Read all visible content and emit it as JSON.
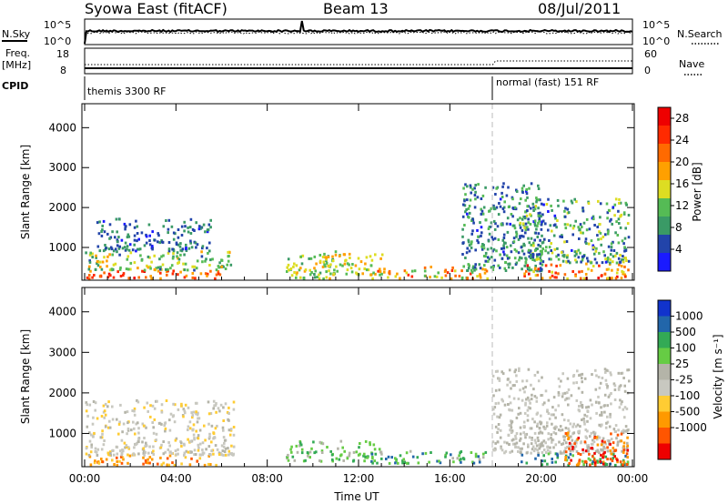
{
  "header": {
    "radar_title": "Syowa East (fitACF)",
    "beam": "Beam 13",
    "date": "08/Jul/2011"
  },
  "noise_panel": {
    "left_label": "N.Sky",
    "left_ticks": [
      "10^5",
      "10^0"
    ],
    "right_ticks": [
      "10^5",
      "10^0"
    ],
    "right_label": "N.Search"
  },
  "freq_panel": {
    "left_label_1": "Freq.",
    "left_label_2": "[MHz]",
    "left_ticks": [
      "18",
      "8"
    ],
    "right_ticks": [
      "60",
      "0"
    ],
    "right_label": "Nave"
  },
  "cpid_panel": {
    "label": "CPID",
    "mode_1": "themis 3300 RF",
    "mode_2": "normal (fast) 151 RF"
  },
  "colors": {
    "power_scale": [
      "#1a1aff",
      "#2244aa",
      "#3a9a66",
      "#55bb55",
      "#dddd22",
      "#ffa000",
      "#ff6a00",
      "#ff2a00",
      "#ee0000"
    ],
    "velocity_scale": [
      "#ee0000",
      "#ff5500",
      "#ff9900",
      "#ffcc33",
      "#c8c8c0",
      "#b4b4a8",
      "#66cc44",
      "#33aa55",
      "#2266aa",
      "#1133cc"
    ]
  },
  "chart_data": [
    {
      "type": "heatmap",
      "name": "power-panel",
      "x": {
        "ticks": [
          "00:00",
          "04:00",
          "08:00",
          "12:00",
          "16:00",
          "20:00",
          "00:00"
        ],
        "range_hours": [
          0,
          24
        ]
      },
      "ylabel": "Slant Range [km]",
      "y": {
        "ticks": [
          "1000",
          "2000",
          "3000",
          "4000"
        ],
        "range": [
          180,
          4600
        ]
      },
      "colorbar": {
        "label": "Power [dB]",
        "ticks": [
          "4",
          "8",
          "12",
          "16",
          "20",
          "24",
          "28"
        ],
        "range": [
          0,
          30
        ]
      },
      "clusters": [
        {
          "t": [
            0.0,
            6.0
          ],
          "r": [
            180,
            420
          ],
          "v": [
            18,
            28
          ]
        },
        {
          "t": [
            0.0,
            6.5
          ],
          "r": [
            420,
            900
          ],
          "v": [
            6,
            18
          ]
        },
        {
          "t": [
            0.5,
            5.5
          ],
          "r": [
            900,
            1700
          ],
          "v": [
            3,
            10
          ]
        },
        {
          "t": [
            8.8,
            11.0
          ],
          "r": [
            200,
            800
          ],
          "v": [
            8,
            18
          ]
        },
        {
          "t": [
            10.2,
            13.0
          ],
          "r": [
            300,
            900
          ],
          "v": [
            10,
            20
          ]
        },
        {
          "t": [
            12.5,
            17.6
          ],
          "r": [
            200,
            500
          ],
          "v": [
            12,
            24
          ]
        },
        {
          "t": [
            16.5,
            20.0
          ],
          "r": [
            400,
            2600
          ],
          "v": [
            3,
            12
          ]
        },
        {
          "t": [
            19.0,
            23.8
          ],
          "r": [
            180,
            600
          ],
          "v": [
            14,
            28
          ]
        },
        {
          "t": [
            19.0,
            23.8
          ],
          "r": [
            600,
            2200
          ],
          "v": [
            3,
            16
          ]
        }
      ]
    },
    {
      "type": "heatmap",
      "name": "velocity-panel",
      "x": {
        "ticks": [
          "00:00",
          "04:00",
          "08:00",
          "12:00",
          "16:00",
          "20:00",
          "00:00"
        ],
        "range_hours": [
          0,
          24
        ],
        "xlabel": "Time UT"
      },
      "ylabel": "Slant Range [km]",
      "y": {
        "ticks": [
          "1000",
          "2000",
          "3000",
          "4000"
        ],
        "range": [
          180,
          4600
        ]
      },
      "colorbar": {
        "label": "Velocity [m s⁻¹]",
        "ticks": [
          "1000",
          "500",
          "100",
          "25",
          "-25",
          "-100",
          "-500",
          "-1000"
        ]
      },
      "clusters": [
        {
          "t": [
            0.0,
            6.0
          ],
          "r": [
            180,
            450
          ],
          "v": [
            1,
            3
          ]
        },
        {
          "t": [
            0.0,
            6.5
          ],
          "r": [
            450,
            1800
          ],
          "v": [
            3,
            5
          ]
        },
        {
          "t": [
            8.8,
            13.0
          ],
          "r": [
            300,
            800
          ],
          "v": [
            5,
            7
          ]
        },
        {
          "t": [
            12.5,
            17.6
          ],
          "r": [
            250,
            550
          ],
          "v": [
            5,
            8
          ]
        },
        {
          "t": [
            17.8,
            23.8
          ],
          "r": [
            500,
            2600
          ],
          "v": [
            4,
            5
          ]
        },
        {
          "t": [
            19.0,
            23.8
          ],
          "r": [
            180,
            500
          ],
          "v": [
            6,
            8
          ]
        },
        {
          "t": [
            21.0,
            23.8
          ],
          "r": [
            200,
            1000
          ],
          "v": [
            0,
            2
          ]
        }
      ]
    }
  ]
}
